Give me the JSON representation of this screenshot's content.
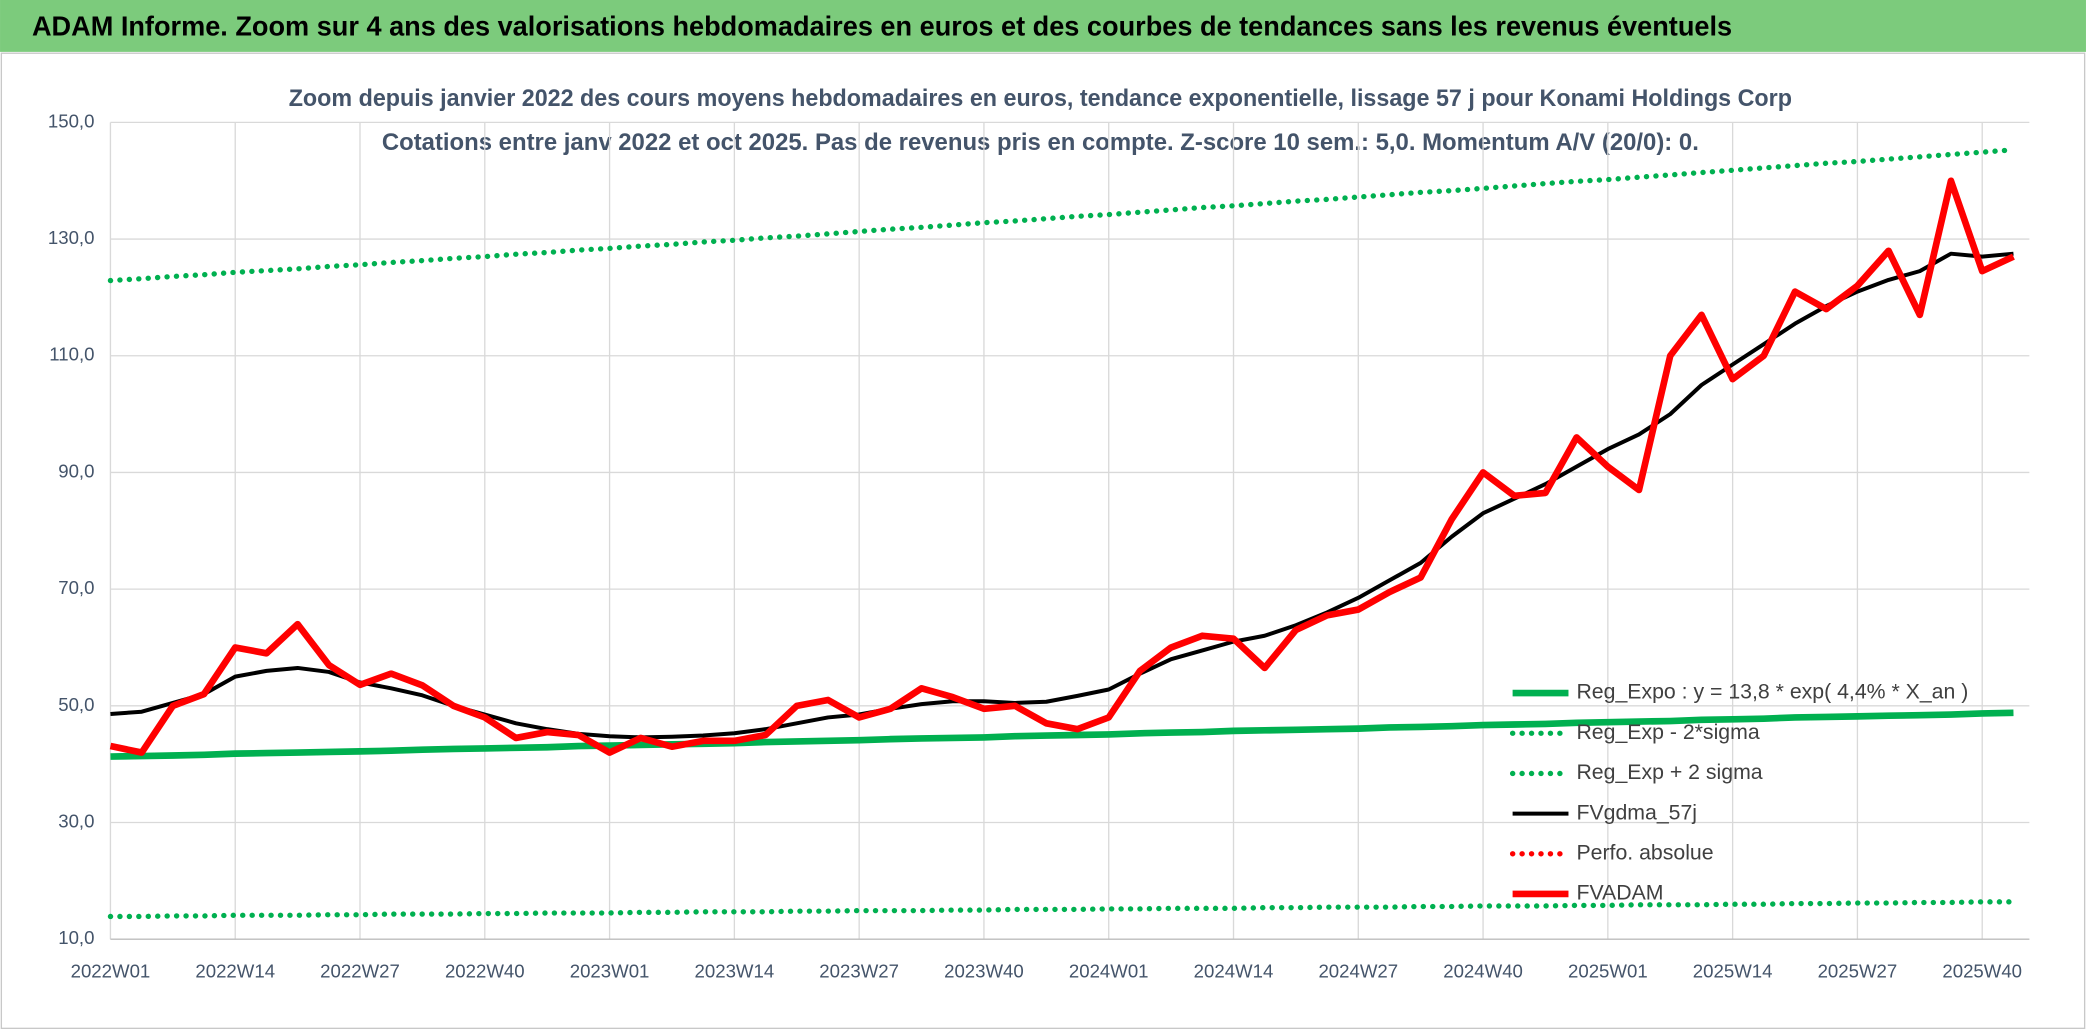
{
  "header": {
    "title": "ADAM Informe. Zoom sur 4 ans des valorisations hebdomadaires en euros et des courbes de tendances sans les revenus éventuels"
  },
  "chart_data": {
    "type": "line",
    "title": "Zoom depuis janvier 2022 des cours moyens hebdomadaires en euros, tendance exponentielle, lissage 57 j pour Konami Holdings Corp",
    "subtitle": "Cotations entre janv 2022 et oct 2025. Pas de revenus pris en compte. Z-score 10 sem.: 5,0. Momentum A/V (20/0): 0.",
    "categories": [
      "2022W01",
      null,
      null,
      null,
      "2022W14",
      null,
      null,
      null,
      "2022W27",
      null,
      null,
      null,
      "2022W40",
      null,
      null,
      null,
      "2023W01",
      null,
      null,
      null,
      "2023W14",
      null,
      null,
      null,
      "2023W27",
      null,
      null,
      null,
      "2023W40",
      null,
      null,
      null,
      "2024W01",
      null,
      null,
      null,
      "2024W14",
      null,
      null,
      null,
      "2024W27",
      null,
      null,
      null,
      "2024W40",
      null,
      null,
      null,
      "2025W01",
      null,
      null,
      null,
      "2025W14",
      null,
      null,
      null,
      "2025W27",
      null,
      null,
      null,
      "2025W40",
      null
    ],
    "ylim": [
      10,
      150
    ],
    "yticks": [
      {
        "value": 10,
        "label": "10,0"
      },
      {
        "value": 30,
        "label": "30,0"
      },
      {
        "value": 50,
        "label": "50,0"
      },
      {
        "value": 70,
        "label": "70,0"
      },
      {
        "value": 90,
        "label": "90,0"
      },
      {
        "value": 110,
        "label": "110,0"
      },
      {
        "value": 130,
        "label": "130,0"
      },
      {
        "value": 150,
        "label": "150,0"
      }
    ],
    "grid": true,
    "legend": "lower right",
    "series": [
      {
        "name": "Reg_Expo : y = 13,8 * exp( 4,4% *  X_an )",
        "color": "#00b050",
        "dash": "solid",
        "values": [
          41.3,
          41.4,
          41.5,
          41.6,
          41.8,
          41.9,
          42.0,
          42.1,
          42.2,
          42.3,
          42.5,
          42.6,
          42.7,
          42.8,
          42.9,
          43.1,
          43.2,
          43.3,
          43.4,
          43.5,
          43.6,
          43.8,
          43.9,
          44.0,
          44.1,
          44.3,
          44.4,
          44.5,
          44.6,
          44.8,
          44.9,
          45.0,
          45.1,
          45.3,
          45.4,
          45.5,
          45.7,
          45.8,
          45.9,
          46.0,
          46.1,
          46.3,
          46.4,
          46.5,
          46.7,
          46.8,
          46.9,
          47.1,
          47.2,
          47.3,
          47.4,
          47.6,
          47.7,
          47.8,
          48.0,
          48.1,
          48.2,
          48.3,
          48.4,
          48.5,
          48.7,
          48.8
        ]
      },
      {
        "name": "Reg_Exp - 2*sigma",
        "color": "#00b050",
        "dash": "dotted",
        "values": [
          13.9,
          13.9,
          14.0,
          14.0,
          14.1,
          14.1,
          14.1,
          14.2,
          14.2,
          14.3,
          14.3,
          14.3,
          14.4,
          14.4,
          14.5,
          14.5,
          14.5,
          14.6,
          14.6,
          14.7,
          14.7,
          14.7,
          14.8,
          14.8,
          14.9,
          14.9,
          14.9,
          15.0,
          15.0,
          15.1,
          15.1,
          15.1,
          15.2,
          15.2,
          15.3,
          15.3,
          15.3,
          15.4,
          15.4,
          15.5,
          15.5,
          15.5,
          15.6,
          15.6,
          15.7,
          15.7,
          15.7,
          15.8,
          15.8,
          15.9,
          15.9,
          15.9,
          16.0,
          16.0,
          16.1,
          16.1,
          16.2,
          16.2,
          16.3,
          16.3,
          16.4,
          16.4
        ]
      },
      {
        "name": "Reg_Exp + 2 sigma",
        "color": "#00b050",
        "dash": "dotted",
        "values": [
          122.9,
          123.2,
          123.6,
          123.9,
          124.3,
          124.6,
          124.9,
          125.3,
          125.6,
          126.0,
          126.3,
          126.7,
          127.0,
          127.4,
          127.7,
          128.1,
          128.4,
          128.8,
          129.1,
          129.5,
          129.8,
          130.2,
          130.5,
          130.9,
          131.3,
          131.7,
          132.0,
          132.4,
          132.8,
          133.1,
          133.5,
          133.9,
          134.2,
          134.6,
          135.0,
          135.4,
          135.7,
          136.1,
          136.5,
          136.8,
          137.2,
          137.6,
          138.0,
          138.3,
          138.7,
          139.1,
          139.5,
          139.9,
          140.2,
          140.6,
          141.0,
          141.4,
          141.8,
          142.2,
          142.6,
          143.0,
          143.3,
          143.7,
          144.1,
          144.5,
          144.9,
          145.3
        ]
      },
      {
        "name": "FVgdma_57j",
        "color": "#000000",
        "dash": "solid",
        "values": [
          48.6,
          49.0,
          50.5,
          52.0,
          55.0,
          56.0,
          56.5,
          55.8,
          54.0,
          53.0,
          51.8,
          50.0,
          48.5,
          47.0,
          46.0,
          45.2,
          44.8,
          44.6,
          44.7,
          44.9,
          45.3,
          46.0,
          47.0,
          48.0,
          48.5,
          49.5,
          50.3,
          50.8,
          50.8,
          50.5,
          50.7,
          51.7,
          52.8,
          55.5,
          58.0,
          59.5,
          61.0,
          62.0,
          63.8,
          66.0,
          68.5,
          71.5,
          74.5,
          79.0,
          83.0,
          85.5,
          88.0,
          91.0,
          94.0,
          96.5,
          100.0,
          105.0,
          108.5,
          112.0,
          115.5,
          118.5,
          121.0,
          123.0,
          124.5,
          127.5,
          127.0,
          127.5
        ]
      },
      {
        "name": "Perfo. absolue",
        "color": "#ff0000",
        "dash": "dotted",
        "values": [
          null,
          null,
          null,
          null,
          null,
          null,
          null,
          null,
          null,
          null,
          null,
          null,
          null,
          null,
          null,
          null,
          null,
          null,
          null,
          null,
          null,
          null,
          null,
          null,
          null,
          null,
          null,
          null,
          null,
          null,
          null,
          null,
          null,
          null,
          null,
          null,
          null,
          null,
          null,
          null,
          null,
          null,
          null,
          null,
          null,
          null,
          null,
          null,
          null,
          null,
          null,
          null,
          null,
          null,
          null,
          null,
          null,
          null,
          null,
          null,
          null,
          null
        ]
      },
      {
        "name": "FVADAM",
        "color": "#ff0000",
        "dash": "solid",
        "values": [
          43.1,
          42.0,
          50.0,
          52.0,
          60.0,
          59.0,
          64.0,
          57.0,
          53.6,
          55.5,
          53.5,
          50.0,
          48.0,
          44.5,
          45.5,
          45.0,
          42.0,
          44.5,
          43.0,
          44.0,
          44.0,
          45.0,
          50.0,
          51.0,
          48.0,
          49.5,
          53.0,
          51.5,
          49.5,
          50.0,
          47.0,
          46.0,
          48.0,
          56.0,
          60.0,
          62.0,
          61.5,
          56.5,
          63.0,
          65.5,
          66.5,
          69.5,
          72.0,
          82.0,
          90.0,
          86.0,
          86.5,
          96.0,
          91.0,
          87.0,
          110.0,
          117.0,
          106.0,
          110.0,
          121.0,
          118.0,
          122.0,
          128.0,
          117.0,
          140.0,
          124.5,
          127.0
        ]
      }
    ]
  }
}
